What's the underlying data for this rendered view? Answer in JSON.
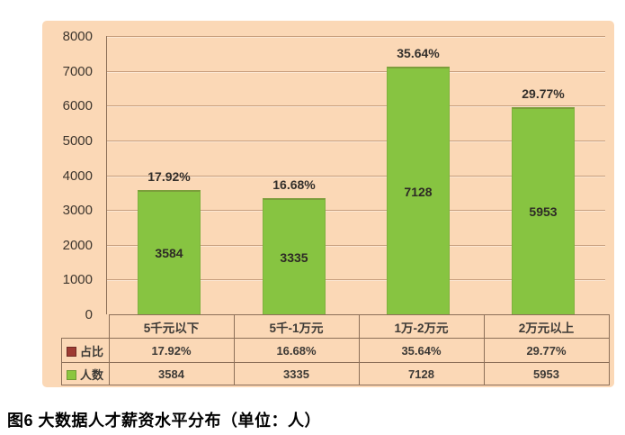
{
  "caption": "图6 大数据人才薪资水平分布（单位：人）",
  "colors": {
    "panel_background": "#FBD8B6",
    "gridline": "#C79E7D",
    "axis_and_table_border": "#8C6F58",
    "bar_fill": "#87C441",
    "bar_top_edge": "#7C9E3B",
    "pct_series_marker": "#9E3B33",
    "count_series_marker": "#8CC63F",
    "text": "#3D3A36"
  },
  "chart_data": {
    "type": "bar",
    "title": "图6 大数据人才薪资水平分布（单位：人）",
    "categories": [
      "5千元以下",
      "5千-1万元",
      "1万-2万元",
      "2万元以上"
    ],
    "series": [
      {
        "name": "占比",
        "values": [
          17.92,
          16.68,
          35.64,
          29.77
        ],
        "unit": "%"
      },
      {
        "name": "人数",
        "values": [
          3584,
          3335,
          7128,
          5953
        ]
      }
    ],
    "pct_labels": [
      "17.92%",
      "16.68%",
      "35.64%",
      "29.77%"
    ],
    "value_labels": [
      "3584",
      "3335",
      "7128",
      "5953"
    ],
    "xlabel": "",
    "ylabel": "",
    "ylim": [
      0,
      8000
    ],
    "ytick_interval": 1000,
    "yticks": [
      "8000",
      "7000",
      "6000",
      "5000",
      "4000",
      "3000",
      "2000",
      "1000",
      "0"
    ],
    "grid": true,
    "legend_position": "table-row-headers"
  },
  "table": {
    "row_headers": [
      "占比",
      "人数"
    ],
    "columns": [
      "5千元以下",
      "5千-1万元",
      "1万-2万元",
      "2万元以上"
    ],
    "rows": [
      [
        "17.92%",
        "16.68%",
        "35.64%",
        "29.77%"
      ],
      [
        "3584",
        "3335",
        "7128",
        "5953"
      ]
    ]
  }
}
